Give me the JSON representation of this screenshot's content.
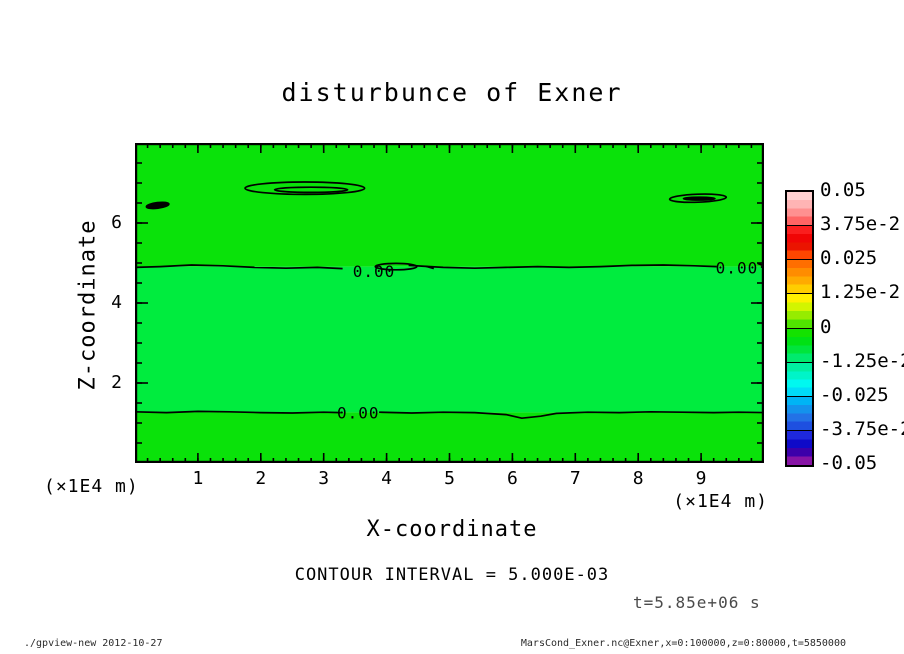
{
  "header": {
    "title": "disturbunce of Exner"
  },
  "annotations": {
    "contour_interval": "CONTOUR INTERVAL = 5.000E-03",
    "time_label": "t=5.85e+06 s"
  },
  "footer": {
    "left": "./gpview-new  2012-10-27",
    "right": "MarsCond_Exner.nc@Exner,x=0:100000,z=0:80000,t=5850000"
  },
  "chart_data": {
    "type": "heatmap",
    "title": "disturbunce of Exner",
    "xlabel": "X-coordinate",
    "ylabel": "Z-coordinate",
    "x_unit": "(×1E4 m)",
    "y_unit": "(×1E4 m)",
    "xlim": [
      0,
      10
    ],
    "ylim": [
      0,
      8
    ],
    "x_major_ticks": [
      1,
      2,
      3,
      4,
      5,
      6,
      7,
      8,
      9
    ],
    "x_minor_step": 0.2,
    "y_major_ticks": [
      2,
      4,
      6
    ],
    "y_minor_step": 0.5,
    "grid": false,
    "contour_interval_value": "5.000E-03",
    "time_value": "5.85e+06 s",
    "frame_color": "#000000",
    "fill_regions": [
      {
        "z_from": 4.91,
        "z_to": 8.0,
        "color": "#0ae20a"
      },
      {
        "z_from": 1.265,
        "z_to": 4.91,
        "color": "#00ec3e"
      },
      {
        "z_from": 0.0,
        "z_to": 1.265,
        "color": "#0ae20a"
      }
    ],
    "zero_contours": [
      {
        "level": 0.0,
        "segments": [
          [
            [
              0,
              4.89
            ],
            [
              0.4,
              4.91
            ],
            [
              0.9,
              4.95
            ],
            [
              1.4,
              4.93
            ],
            [
              1.9,
              4.89
            ],
            [
              2.4,
              4.87
            ],
            [
              2.9,
              4.89
            ],
            [
              3.3,
              4.86
            ]
          ],
          [
            [
              4.35,
              4.94
            ],
            [
              4.9,
              4.89
            ],
            [
              5.4,
              4.87
            ],
            [
              5.9,
              4.89
            ],
            [
              6.4,
              4.91
            ],
            [
              6.9,
              4.89
            ],
            [
              7.4,
              4.91
            ],
            [
              7.9,
              4.94
            ],
            [
              8.4,
              4.95
            ],
            [
              8.9,
              4.93
            ],
            [
              9.25,
              4.91
            ]
          ],
          [
            [
              9.95,
              4.9
            ],
            [
              10,
              4.9
            ]
          ]
        ]
      },
      {
        "level": 0.0,
        "segments": [
          [
            [
              0,
              1.28
            ],
            [
              0.5,
              1.26
            ],
            [
              1.0,
              1.29
            ],
            [
              1.5,
              1.28
            ],
            [
              2.0,
              1.26
            ],
            [
              2.5,
              1.25
            ],
            [
              3.0,
              1.27
            ],
            [
              3.27,
              1.26
            ]
          ],
          [
            [
              3.88,
              1.27
            ],
            [
              4.4,
              1.25
            ],
            [
              4.9,
              1.27
            ],
            [
              5.4,
              1.26
            ],
            [
              5.9,
              1.21
            ],
            [
              6.15,
              1.12
            ],
            [
              6.45,
              1.17
            ],
            [
              6.7,
              1.24
            ],
            [
              7.2,
              1.27
            ],
            [
              7.7,
              1.26
            ],
            [
              8.2,
              1.28
            ],
            [
              8.7,
              1.27
            ],
            [
              9.2,
              1.26
            ],
            [
              9.6,
              1.27
            ],
            [
              10,
              1.26
            ]
          ]
        ]
      }
    ],
    "contour_labels": [
      {
        "text": "0.00",
        "x": 3.8,
        "z": 4.8
      },
      {
        "text": "0.00",
        "x": 9.57,
        "z": 4.89
      },
      {
        "text": "0.00",
        "x": 3.55,
        "z": 1.26
      }
    ],
    "closed_contours": [
      {
        "cx": 2.7,
        "cy": 6.87,
        "rx": 0.95,
        "ry": 0.155,
        "fill": false,
        "rotate": 0
      },
      {
        "cx": 2.8,
        "cy": 6.83,
        "rx": 0.58,
        "ry": 0.065,
        "fill": false,
        "rotate": 0
      },
      {
        "cx": 0.36,
        "cy": 6.44,
        "rx": 0.18,
        "ry": 0.07,
        "fill": true,
        "rotate": -7
      },
      {
        "cx": 8.95,
        "cy": 6.62,
        "rx": 0.45,
        "ry": 0.1,
        "fill": false,
        "rotate": -2
      },
      {
        "cx": 8.97,
        "cy": 6.61,
        "rx": 0.25,
        "ry": 0.035,
        "fill": true,
        "rotate": 0
      },
      {
        "cx": 4.15,
        "cy": 4.91,
        "rx": 0.33,
        "ry": 0.08,
        "fill": false,
        "rotate": 0
      }
    ],
    "extra_marks": [
      {
        "points": [
          [
            4.62,
            4.92
          ],
          [
            4.75,
            4.86
          ]
        ]
      },
      {
        "points": [
          [
            9.9,
            4.99
          ],
          [
            10.0,
            4.93
          ]
        ]
      }
    ],
    "colorbar": {
      "boundary_labels": [
        "0.05",
        "3.75e-2",
        "0.025",
        "1.25e-2",
        "0",
        "-1.25e-2",
        "-0.025",
        "-3.75e-2",
        "-0.05"
      ],
      "segments": [
        [
          "#ffd2d2",
          "#ffb4b4",
          "#ff9090",
          "#ff6464"
        ],
        [
          "#fa1e1e",
          "#f00505",
          "#eb1400",
          "#ff4600"
        ],
        [
          "#ff6e00",
          "#ff8c00",
          "#ffaa00",
          "#ffcd00"
        ],
        [
          "#fff000",
          "#d2f500",
          "#96ec00",
          "#50e400"
        ],
        [
          "#14e200",
          "#00e114",
          "#00e53c",
          "#00ea6e"
        ],
        [
          "#00efa0",
          "#00f4c8",
          "#00f8f0",
          "#00dcf8"
        ],
        [
          "#00b4f5",
          "#1492ec",
          "#2372e6",
          "#1e50e0"
        ],
        [
          "#1e28dc",
          "#0f0ac8",
          "#3c00aa",
          "#8714a5"
        ]
      ]
    }
  }
}
